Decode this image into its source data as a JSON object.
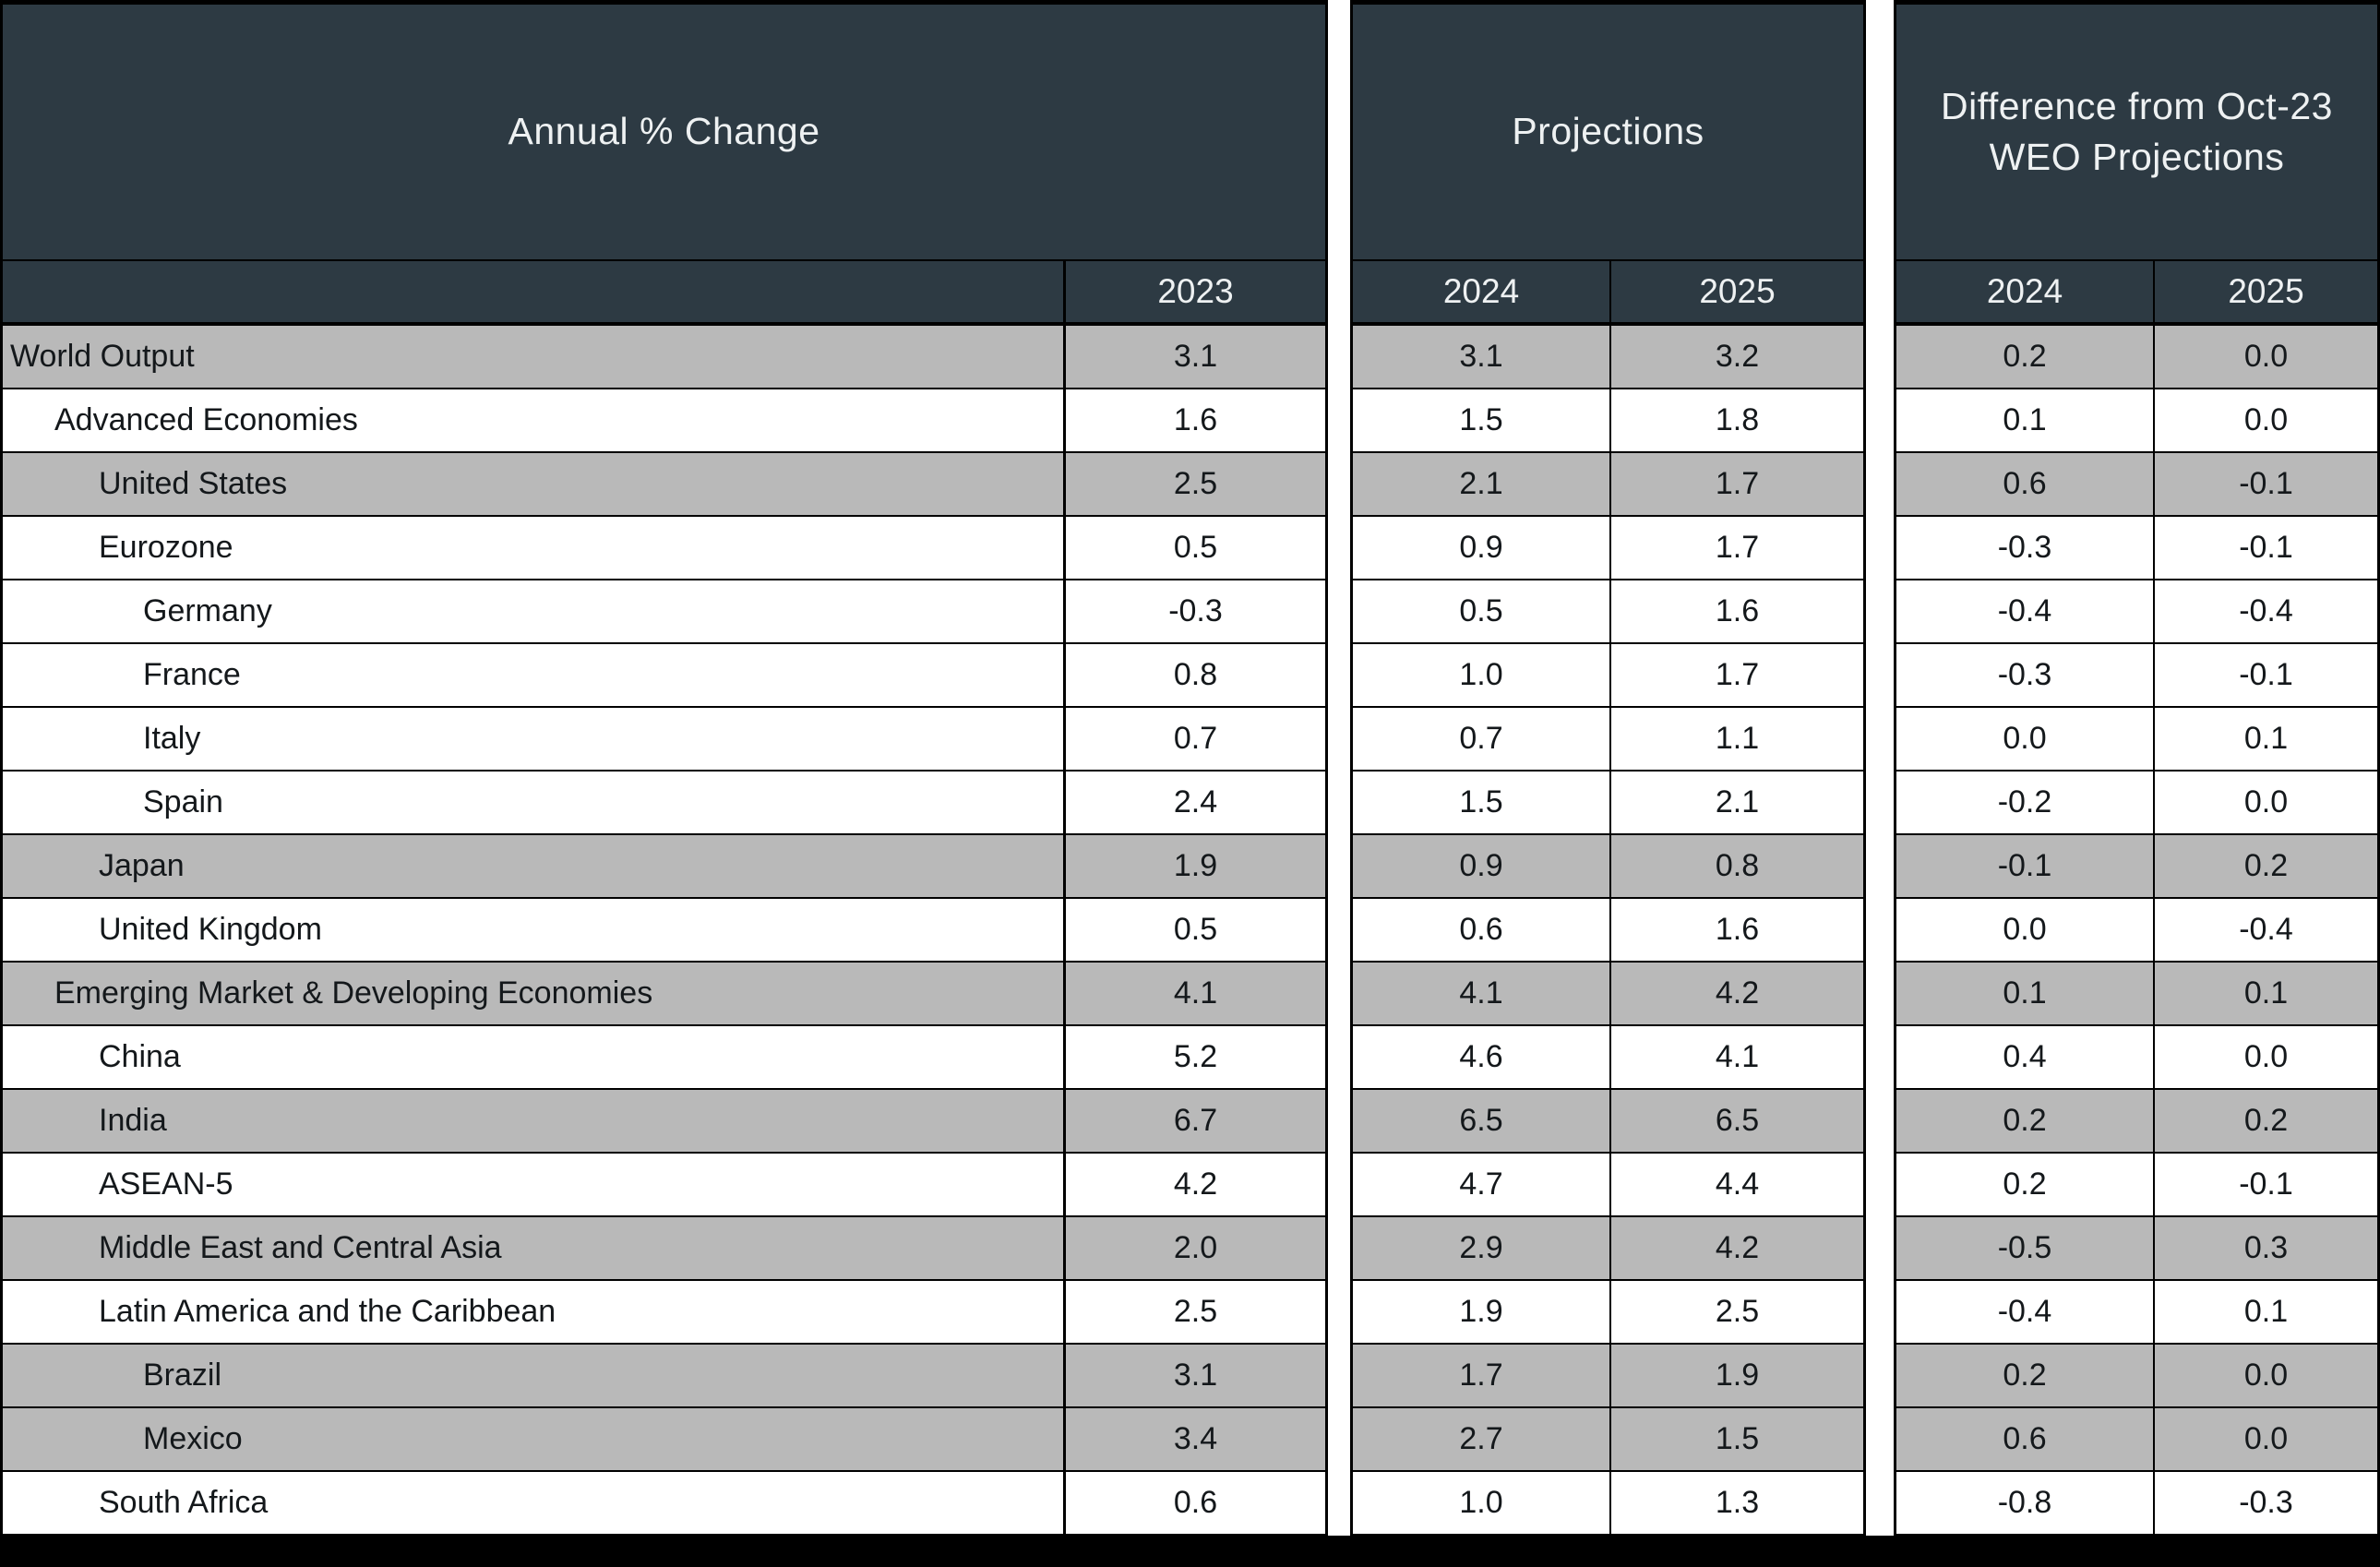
{
  "colors": {
    "header_bg": "#2d3a43",
    "header_text": "#eef1f2",
    "shaded_row": "#b9b9b9",
    "row_bg": "#ffffff",
    "body_text": "#14181b",
    "border": "#000000"
  },
  "chart_data": {
    "type": "table",
    "column_groups": [
      {
        "title": "Annual % Change",
        "columns": [
          "2023"
        ]
      },
      {
        "title": "Projections",
        "columns": [
          "2024",
          "2025"
        ]
      },
      {
        "title": "Difference from Oct-23 WEO Projections",
        "columns": [
          "2024",
          "2025"
        ]
      }
    ],
    "rows": [
      {
        "label": "World Output",
        "indent": 0,
        "shaded": true,
        "values": [
          "3.1",
          "3.1",
          "3.2",
          "0.2",
          "0.0"
        ]
      },
      {
        "label": "Advanced Economies",
        "indent": 1,
        "shaded": false,
        "values": [
          "1.6",
          "1.5",
          "1.8",
          "0.1",
          "0.0"
        ]
      },
      {
        "label": "United States",
        "indent": 2,
        "shaded": true,
        "values": [
          "2.5",
          "2.1",
          "1.7",
          "0.6",
          "-0.1"
        ]
      },
      {
        "label": "Eurozone",
        "indent": 2,
        "shaded": false,
        "values": [
          "0.5",
          "0.9",
          "1.7",
          "-0.3",
          "-0.1"
        ]
      },
      {
        "label": "Germany",
        "indent": 3,
        "shaded": false,
        "values": [
          "-0.3",
          "0.5",
          "1.6",
          "-0.4",
          "-0.4"
        ]
      },
      {
        "label": "France",
        "indent": 3,
        "shaded": false,
        "values": [
          "0.8",
          "1.0",
          "1.7",
          "-0.3",
          "-0.1"
        ]
      },
      {
        "label": "Italy",
        "indent": 3,
        "shaded": false,
        "values": [
          "0.7",
          "0.7",
          "1.1",
          "0.0",
          "0.1"
        ]
      },
      {
        "label": "Spain",
        "indent": 3,
        "shaded": false,
        "values": [
          "2.4",
          "1.5",
          "2.1",
          "-0.2",
          "0.0"
        ]
      },
      {
        "label": "Japan",
        "indent": 2,
        "shaded": true,
        "values": [
          "1.9",
          "0.9",
          "0.8",
          "-0.1",
          "0.2"
        ]
      },
      {
        "label": "United Kingdom",
        "indent": 2,
        "shaded": false,
        "values": [
          "0.5",
          "0.6",
          "1.6",
          "0.0",
          "-0.4"
        ]
      },
      {
        "label": "Emerging Market & Developing Economies",
        "indent": 1,
        "shaded": true,
        "values": [
          "4.1",
          "4.1",
          "4.2",
          "0.1",
          "0.1"
        ]
      },
      {
        "label": "China",
        "indent": 2,
        "shaded": false,
        "values": [
          "5.2",
          "4.6",
          "4.1",
          "0.4",
          "0.0"
        ]
      },
      {
        "label": "India",
        "indent": 2,
        "shaded": true,
        "values": [
          "6.7",
          "6.5",
          "6.5",
          "0.2",
          "0.2"
        ]
      },
      {
        "label": "ASEAN-5",
        "indent": 2,
        "shaded": false,
        "values": [
          "4.2",
          "4.7",
          "4.4",
          "0.2",
          "-0.1"
        ]
      },
      {
        "label": "Middle East and Central Asia",
        "indent": 2,
        "shaded": true,
        "values": [
          "2.0",
          "2.9",
          "4.2",
          "-0.5",
          "0.3"
        ]
      },
      {
        "label": "Latin America and the Caribbean",
        "indent": 2,
        "shaded": false,
        "values": [
          "2.5",
          "1.9",
          "2.5",
          "-0.4",
          "0.1"
        ]
      },
      {
        "label": "Brazil",
        "indent": 3,
        "shaded": true,
        "values": [
          "3.1",
          "1.7",
          "1.9",
          "0.2",
          "0.0"
        ]
      },
      {
        "label": "Mexico",
        "indent": 3,
        "shaded": true,
        "values": [
          "3.4",
          "2.7",
          "1.5",
          "0.6",
          "0.0"
        ]
      },
      {
        "label": "South Africa",
        "indent": 2,
        "shaded": false,
        "values": [
          "0.6",
          "1.0",
          "1.3",
          "-0.8",
          "-0.3"
        ]
      }
    ]
  }
}
